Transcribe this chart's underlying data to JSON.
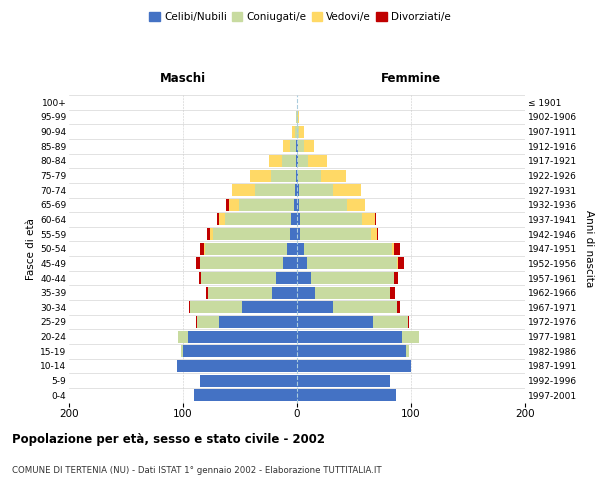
{
  "age_groups": [
    "0-4",
    "5-9",
    "10-14",
    "15-19",
    "20-24",
    "25-29",
    "30-34",
    "35-39",
    "40-44",
    "45-49",
    "50-54",
    "55-59",
    "60-64",
    "65-69",
    "70-74",
    "75-79",
    "80-84",
    "85-89",
    "90-94",
    "95-99",
    "100+"
  ],
  "birth_years": [
    "1997-2001",
    "1992-1996",
    "1987-1991",
    "1982-1986",
    "1977-1981",
    "1972-1976",
    "1967-1971",
    "1962-1966",
    "1957-1961",
    "1952-1956",
    "1947-1951",
    "1942-1946",
    "1937-1941",
    "1932-1936",
    "1927-1931",
    "1922-1926",
    "1917-1921",
    "1912-1916",
    "1907-1911",
    "1902-1906",
    "≤ 1901"
  ],
  "males_celibi": [
    90,
    85,
    105,
    100,
    96,
    68,
    48,
    22,
    18,
    12,
    9,
    6,
    5,
    3,
    2,
    1,
    1,
    1,
    0,
    0,
    0
  ],
  "males_coniugati": [
    0,
    0,
    0,
    2,
    8,
    20,
    46,
    56,
    66,
    73,
    72,
    68,
    58,
    48,
    35,
    22,
    12,
    5,
    2,
    1,
    0
  ],
  "males_vedovi": [
    0,
    0,
    0,
    0,
    0,
    0,
    0,
    0,
    0,
    0,
    1,
    2,
    5,
    9,
    20,
    18,
    12,
    6,
    2,
    0,
    0
  ],
  "males_divorziati": [
    0,
    0,
    0,
    0,
    0,
    1,
    1,
    2,
    2,
    4,
    3,
    3,
    2,
    2,
    0,
    0,
    0,
    0,
    0,
    0,
    0
  ],
  "females_nubili": [
    87,
    82,
    100,
    96,
    92,
    67,
    32,
    16,
    12,
    9,
    6,
    3,
    3,
    2,
    2,
    1,
    1,
    1,
    0,
    0,
    0
  ],
  "females_coniugate": [
    0,
    0,
    0,
    2,
    15,
    30,
    56,
    66,
    73,
    79,
    77,
    62,
    54,
    42,
    30,
    20,
    9,
    5,
    2,
    1,
    0
  ],
  "females_vedove": [
    0,
    0,
    0,
    0,
    0,
    0,
    0,
    0,
    0,
    1,
    2,
    5,
    11,
    16,
    24,
    22,
    16,
    9,
    4,
    1,
    0
  ],
  "females_divorziate": [
    0,
    0,
    0,
    0,
    0,
    1,
    2,
    4,
    4,
    5,
    5,
    1,
    1,
    0,
    0,
    0,
    0,
    0,
    0,
    0,
    0
  ],
  "color_celibi": "#4472C4",
  "color_coniugati": "#c8dba0",
  "color_vedovi": "#ffd966",
  "color_divorziati": "#c00000",
  "xlim": 200,
  "title": "Popolazione per età, sesso e stato civile - 2002",
  "subtitle": "COMUNE DI TERTENIA (NU) - Dati ISTAT 1° gennaio 2002 - Elaborazione TUTTITALIA.IT",
  "label_maschi": "Maschi",
  "label_femmine": "Femmine",
  "ylabel_left": "Fasce di età",
  "ylabel_right": "Anni di nascita",
  "legend_labels": [
    "Celibi/Nubili",
    "Coniugati/e",
    "Vedovi/e",
    "Divorziati/e"
  ]
}
